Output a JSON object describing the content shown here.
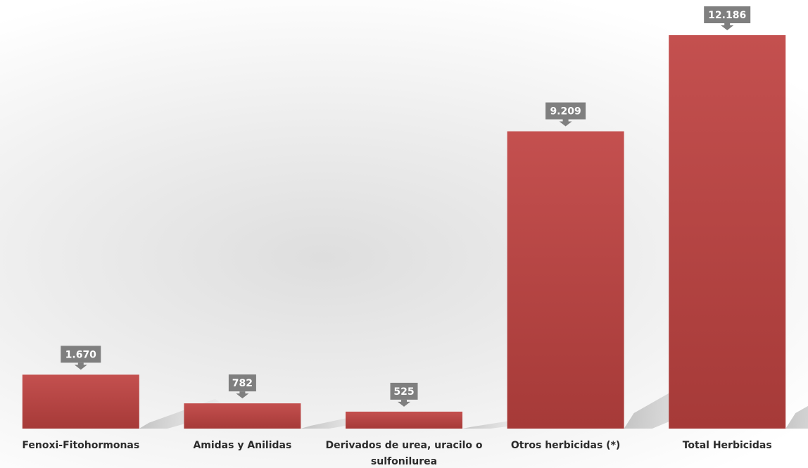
{
  "chart_data": {
    "type": "bar",
    "categories": [
      [
        "Fenoxi-Fitohormonas"
      ],
      [
        "Amidas y Anilidas"
      ],
      [
        "Derivados de urea, uracilo o",
        "sulfonilurea"
      ],
      [
        "Otros herbicidas (*)"
      ],
      [
        "Total Herbicidas"
      ]
    ],
    "values": [
      1670,
      782,
      525,
      9209,
      12186
    ],
    "value_labels": [
      "1.670",
      "782",
      "525",
      "9.209",
      "12.186"
    ],
    "title": "",
    "xlabel": "",
    "ylabel": "",
    "ylim": [
      0,
      12186
    ],
    "grid": false,
    "legend": "none",
    "colors": {
      "bar_top": "#c4504f",
      "bar_bottom": "#a63a38",
      "callout": "#7f7f7f",
      "label_text": "#2b2b2b"
    }
  }
}
